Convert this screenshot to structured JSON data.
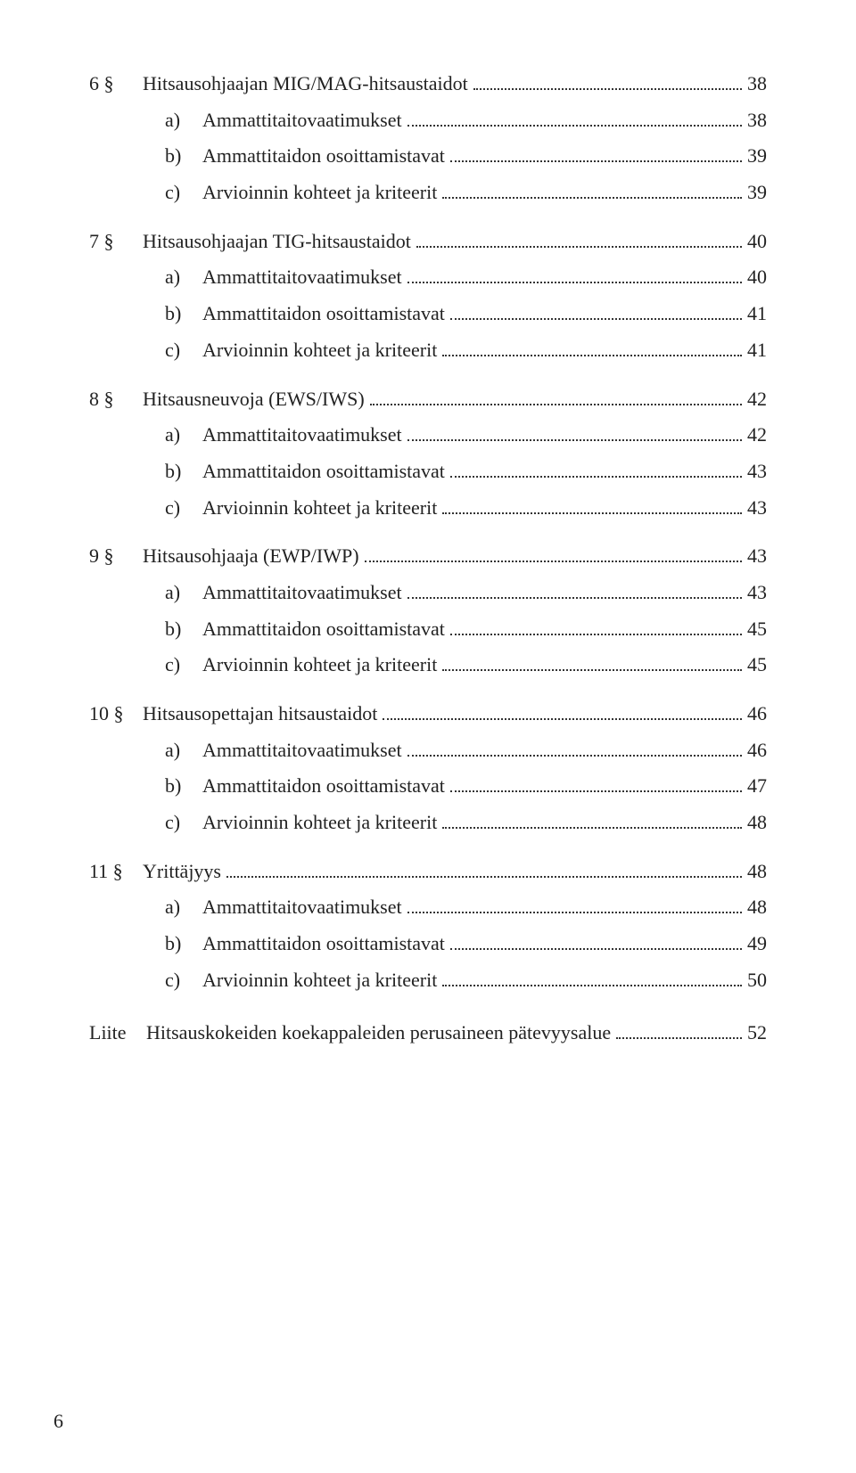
{
  "page_number": "6",
  "toc": [
    {
      "num": "6 §",
      "title": "Hitsausohjaajan MIG/MAG-hitsaustaidot",
      "page": "38",
      "sub": [
        {
          "let": "a)",
          "title": "Ammattitaitovaatimukset",
          "page": "38"
        },
        {
          "let": "b)",
          "title": "Ammattitaidon osoittamistavat",
          "page": "39"
        },
        {
          "let": "c)",
          "title": "Arvioinnin kohteet ja kriteerit",
          "page": "39"
        }
      ]
    },
    {
      "num": "7 §",
      "title": "Hitsausohjaajan TIG-hitsaustaidot",
      "page": "40",
      "sub": [
        {
          "let": "a)",
          "title": "Ammattitaitovaatimukset",
          "page": "40"
        },
        {
          "let": "b)",
          "title": "Ammattitaidon osoittamistavat",
          "page": "41"
        },
        {
          "let": "c)",
          "title": "Arvioinnin kohteet ja kriteerit",
          "page": "41"
        }
      ]
    },
    {
      "num": "8 §",
      "title": "Hitsausneuvoja (EWS/IWS)",
      "page": "42",
      "sub": [
        {
          "let": "a)",
          "title": "Ammattitaitovaatimukset",
          "page": "42"
        },
        {
          "let": "b)",
          "title": "Ammattitaidon osoittamistavat",
          "page": "43"
        },
        {
          "let": "c)",
          "title": "Arvioinnin kohteet ja kriteerit",
          "page": "43"
        }
      ]
    },
    {
      "num": "9 §",
      "title": "Hitsausohjaaja (EWP/IWP)",
      "page": "43",
      "sub": [
        {
          "let": "a)",
          "title": "Ammattitaitovaatimukset",
          "page": "43"
        },
        {
          "let": "b)",
          "title": "Ammattitaidon osoittamistavat",
          "page": "45"
        },
        {
          "let": "c)",
          "title": "Arvioinnin kohteet ja kriteerit",
          "page": "45"
        }
      ]
    },
    {
      "num": "10 §",
      "title": "Hitsausopettajan hitsaustaidot",
      "page": "46",
      "sub": [
        {
          "let": "a)",
          "title": "Ammattitaitovaatimukset",
          "page": "46"
        },
        {
          "let": "b)",
          "title": "Ammattitaidon osoittamistavat",
          "page": "47"
        },
        {
          "let": "c)",
          "title": "Arvioinnin kohteet ja kriteerit",
          "page": "48"
        }
      ]
    },
    {
      "num": "11 §",
      "title": "Yrittäjyys",
      "page": "48",
      "sub": [
        {
          "let": "a)",
          "title": "Ammattitaitovaatimukset",
          "page": "48"
        },
        {
          "let": "b)",
          "title": "Ammattitaidon osoittamistavat",
          "page": "49"
        },
        {
          "let": "c)",
          "title": "Arvioinnin kohteet ja kriteerit",
          "page": "50"
        }
      ]
    }
  ],
  "appendix": {
    "num": "Liite",
    "title": "Hitsauskokeiden koekappaleiden perusaineen pätevyysalue",
    "page": "52"
  }
}
